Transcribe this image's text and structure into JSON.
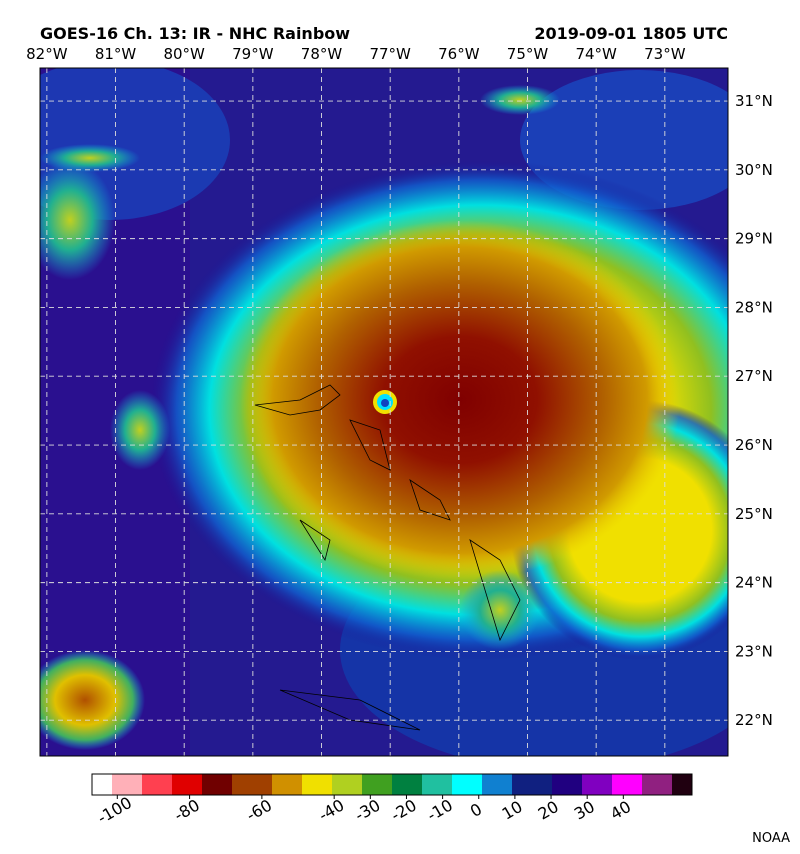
{
  "title": "GOES-16 Ch. 13: IR - NHC Rainbow",
  "timestamp": "2019-09-01 1805 UTC",
  "map": {
    "lon_range": [
      -82.1,
      -72.08
    ],
    "lat_range": [
      21.48,
      31.48
    ],
    "grid": true,
    "lon_ticks": [
      {
        "value": -82,
        "label": "82°W"
      },
      {
        "value": -81,
        "label": "81°W"
      },
      {
        "value": -80,
        "label": "80°W"
      },
      {
        "value": -79,
        "label": "79°W"
      },
      {
        "value": -78,
        "label": "78°W"
      },
      {
        "value": -77,
        "label": "77°W"
      },
      {
        "value": -76,
        "label": "76°W"
      },
      {
        "value": -75,
        "label": "75°W"
      },
      {
        "value": -74,
        "label": "74°W"
      },
      {
        "value": -73,
        "label": "73°W"
      }
    ],
    "lat_ticks": [
      {
        "value": 31,
        "label": "31°N"
      },
      {
        "value": 30,
        "label": "30°N"
      },
      {
        "value": 29,
        "label": "29°N"
      },
      {
        "value": 28,
        "label": "28°N"
      },
      {
        "value": 27,
        "label": "27°N"
      },
      {
        "value": 26,
        "label": "26°N"
      },
      {
        "value": 25,
        "label": "25°N"
      },
      {
        "value": 24,
        "label": "24°N"
      },
      {
        "value": 23,
        "label": "23°N"
      },
      {
        "value": 22,
        "label": "22°N"
      }
    ]
  },
  "colorbar": {
    "range": [
      -107,
      59
    ],
    "ticks": [
      -100,
      -80,
      -60,
      -40,
      -30,
      -20,
      -10,
      0,
      10,
      20,
      30,
      40
    ],
    "colors": [
      "#ffffff",
      "#ffb0b8",
      "#ff4050",
      "#e00000",
      "#700000",
      "#a04000",
      "#d09000",
      "#f0e000",
      "#b0d020",
      "#40a020",
      "#008040",
      "#20c0a0",
      "#00ffff",
      "#1080d0",
      "#102080",
      "#200080",
      "#8000c0",
      "#ff00ff",
      "#902080",
      "#200010"
    ]
  },
  "credit": "NOAA"
}
